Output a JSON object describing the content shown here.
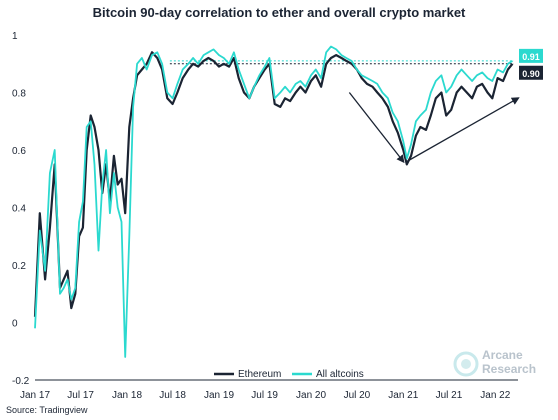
{
  "title": "Bitcoin 90-day correlation to ether and overall crypto market",
  "source": "Source: Tradingview",
  "brand": {
    "line1": "Arcane",
    "line2": "Research"
  },
  "chart_data": {
    "type": "line",
    "xlabel": "",
    "ylabel": "",
    "x_ticks": [
      "Jan 17",
      "Jul 17",
      "Jan 18",
      "Jul 18",
      "Jan 19",
      "Jul 19",
      "Jan 20",
      "Jul 20",
      "Jan 21",
      "Jul 21",
      "Jan 22"
    ],
    "y_ticks": [
      "1",
      "0.8",
      "0.6",
      "0.4",
      "0.2",
      "0",
      "-0.2"
    ],
    "ylim": [
      -0.2,
      1.0
    ],
    "xlim": [
      "2017-01-01",
      "2022-04-01"
    ],
    "grid": false,
    "legend_position": "bottom-center",
    "series": [
      {
        "name": "Ethereum",
        "color": "#1b2433",
        "end_label": "0.90",
        "x": [
          "2017-01-01",
          "2017-01-20",
          "2017-02-10",
          "2017-03-01",
          "2017-03-20",
          "2017-04-10",
          "2017-04-25",
          "2017-05-10",
          "2017-05-25",
          "2017-06-10",
          "2017-06-25",
          "2017-07-10",
          "2017-07-25",
          "2017-08-10",
          "2017-08-25",
          "2017-09-10",
          "2017-09-25",
          "2017-10-10",
          "2017-10-25",
          "2017-11-10",
          "2017-11-25",
          "2017-12-10",
          "2017-12-25",
          "2018-01-10",
          "2018-01-25",
          "2018-02-10",
          "2018-03-01",
          "2018-03-20",
          "2018-04-10",
          "2018-05-01",
          "2018-05-20",
          "2018-06-10",
          "2018-07-01",
          "2018-07-20",
          "2018-08-10",
          "2018-09-01",
          "2018-09-20",
          "2018-10-10",
          "2018-11-01",
          "2018-11-20",
          "2018-12-10",
          "2019-01-01",
          "2019-01-20",
          "2019-02-10",
          "2019-03-01",
          "2019-03-20",
          "2019-04-10",
          "2019-05-01",
          "2019-05-20",
          "2019-06-10",
          "2019-07-01",
          "2019-07-20",
          "2019-08-10",
          "2019-09-01",
          "2019-09-20",
          "2019-10-10",
          "2019-11-01",
          "2019-11-20",
          "2019-12-10",
          "2020-01-01",
          "2020-01-20",
          "2020-02-10",
          "2020-03-01",
          "2020-03-20",
          "2020-04-10",
          "2020-05-01",
          "2020-05-20",
          "2020-06-10",
          "2020-07-01",
          "2020-07-20",
          "2020-08-10",
          "2020-09-01",
          "2020-09-20",
          "2020-10-10",
          "2020-11-01",
          "2020-11-20",
          "2020-12-10",
          "2021-01-01",
          "2021-01-15",
          "2021-02-01",
          "2021-02-20",
          "2021-03-10",
          "2021-04-01",
          "2021-04-20",
          "2021-05-10",
          "2021-06-01",
          "2021-06-20",
          "2021-07-10",
          "2021-08-01",
          "2021-08-20",
          "2021-09-10",
          "2021-10-01",
          "2021-10-20",
          "2021-11-10",
          "2021-12-01",
          "2021-12-20",
          "2022-01-10",
          "2022-02-01",
          "2022-02-20",
          "2022-03-10"
        ],
        "values": [
          0.02,
          0.38,
          0.15,
          0.33,
          0.55,
          0.12,
          0.15,
          0.18,
          0.05,
          0.1,
          0.3,
          0.33,
          0.6,
          0.72,
          0.68,
          0.6,
          0.45,
          0.55,
          0.42,
          0.58,
          0.48,
          0.5,
          0.38,
          0.68,
          0.78,
          0.86,
          0.88,
          0.9,
          0.94,
          0.92,
          0.88,
          0.78,
          0.76,
          0.8,
          0.85,
          0.88,
          0.9,
          0.89,
          0.91,
          0.92,
          0.91,
          0.89,
          0.9,
          0.89,
          0.92,
          0.85,
          0.8,
          0.78,
          0.82,
          0.85,
          0.88,
          0.9,
          0.76,
          0.75,
          0.78,
          0.77,
          0.8,
          0.82,
          0.8,
          0.84,
          0.86,
          0.82,
          0.9,
          0.92,
          0.93,
          0.92,
          0.91,
          0.9,
          0.88,
          0.85,
          0.83,
          0.82,
          0.8,
          0.78,
          0.75,
          0.7,
          0.66,
          0.6,
          0.55,
          0.58,
          0.65,
          0.68,
          0.67,
          0.72,
          0.78,
          0.8,
          0.72,
          0.74,
          0.8,
          0.82,
          0.8,
          0.78,
          0.82,
          0.83,
          0.8,
          0.78,
          0.85,
          0.84,
          0.88,
          0.9
        ]
      },
      {
        "name": "All altcoins",
        "color": "#2bd9cf",
        "end_label": "0.91",
        "x": [
          "2017-01-01",
          "2017-01-20",
          "2017-02-10",
          "2017-03-01",
          "2017-03-20",
          "2017-04-10",
          "2017-04-25",
          "2017-05-10",
          "2017-05-25",
          "2017-06-10",
          "2017-06-25",
          "2017-07-10",
          "2017-07-25",
          "2017-08-10",
          "2017-08-25",
          "2017-09-10",
          "2017-09-25",
          "2017-10-10",
          "2017-10-25",
          "2017-11-10",
          "2017-11-25",
          "2017-12-10",
          "2017-12-25",
          "2018-01-10",
          "2018-01-25",
          "2018-02-10",
          "2018-03-01",
          "2018-03-20",
          "2018-04-10",
          "2018-05-01",
          "2018-05-20",
          "2018-06-10",
          "2018-07-01",
          "2018-07-20",
          "2018-08-10",
          "2018-09-01",
          "2018-09-20",
          "2018-10-10",
          "2018-11-01",
          "2018-11-20",
          "2018-12-10",
          "2019-01-01",
          "2019-01-20",
          "2019-02-10",
          "2019-03-01",
          "2019-03-20",
          "2019-04-10",
          "2019-05-01",
          "2019-05-20",
          "2019-06-10",
          "2019-07-01",
          "2019-07-20",
          "2019-08-10",
          "2019-09-01",
          "2019-09-20",
          "2019-10-10",
          "2019-11-01",
          "2019-11-20",
          "2019-12-10",
          "2020-01-01",
          "2020-01-20",
          "2020-02-10",
          "2020-03-01",
          "2020-03-20",
          "2020-04-10",
          "2020-05-01",
          "2020-05-20",
          "2020-06-10",
          "2020-07-01",
          "2020-07-20",
          "2020-08-10",
          "2020-09-01",
          "2020-09-20",
          "2020-10-10",
          "2020-11-01",
          "2020-11-20",
          "2020-12-10",
          "2021-01-01",
          "2021-01-15",
          "2021-02-01",
          "2021-02-20",
          "2021-03-10",
          "2021-04-01",
          "2021-04-20",
          "2021-05-10",
          "2021-06-01",
          "2021-06-20",
          "2021-07-10",
          "2021-08-01",
          "2021-08-20",
          "2021-09-10",
          "2021-10-01",
          "2021-10-20",
          "2021-11-10",
          "2021-12-01",
          "2021-12-20",
          "2022-01-10",
          "2022-02-01",
          "2022-02-20",
          "2022-03-10"
        ],
        "values": [
          -0.02,
          0.32,
          0.18,
          0.52,
          0.6,
          0.1,
          0.12,
          0.15,
          0.08,
          0.12,
          0.35,
          0.42,
          0.68,
          0.7,
          0.55,
          0.25,
          0.48,
          0.6,
          0.38,
          0.52,
          0.4,
          0.35,
          -0.12,
          0.3,
          0.75,
          0.9,
          0.92,
          0.88,
          0.93,
          0.94,
          0.9,
          0.8,
          0.78,
          0.83,
          0.88,
          0.9,
          0.92,
          0.9,
          0.93,
          0.94,
          0.95,
          0.93,
          0.92,
          0.9,
          0.94,
          0.88,
          0.83,
          0.78,
          0.82,
          0.86,
          0.89,
          0.92,
          0.78,
          0.8,
          0.82,
          0.8,
          0.83,
          0.84,
          0.82,
          0.86,
          0.88,
          0.85,
          0.94,
          0.96,
          0.95,
          0.93,
          0.92,
          0.91,
          0.88,
          0.86,
          0.85,
          0.84,
          0.83,
          0.8,
          0.78,
          0.73,
          0.7,
          0.63,
          0.57,
          0.62,
          0.7,
          0.72,
          0.74,
          0.8,
          0.84,
          0.86,
          0.8,
          0.82,
          0.86,
          0.88,
          0.86,
          0.84,
          0.86,
          0.87,
          0.85,
          0.84,
          0.88,
          0.87,
          0.9,
          0.91
        ]
      }
    ],
    "annotations": [
      {
        "type": "dotted_line",
        "color": "#1b2433",
        "y": 0.9
      },
      {
        "type": "dotted_line",
        "color": "#2bd9cf",
        "y": 0.91
      },
      {
        "type": "arrow",
        "from": [
          "2020-06-01",
          0.8
        ],
        "to": [
          "2021-01-01",
          0.56
        ]
      },
      {
        "type": "arrow",
        "from": [
          "2021-01-15",
          0.56
        ],
        "to": [
          "2022-04-01",
          0.78
        ]
      }
    ]
  }
}
